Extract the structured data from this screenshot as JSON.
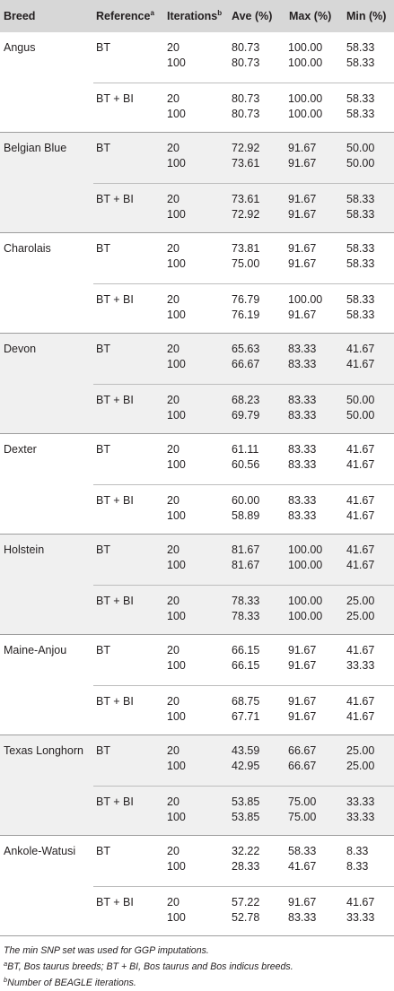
{
  "header": {
    "breed": "Breed",
    "reference": "Reference",
    "reference_sup": "a",
    "iterations": "Iterations",
    "iterations_sup": "b",
    "ave": "Ave (%)",
    "max": "Max (%)",
    "min": "Min (%)"
  },
  "breeds": [
    {
      "name": "Angus",
      "groups": [
        {
          "reference": "BT",
          "rows": [
            [
              "20",
              "80.73",
              "100.00",
              "58.33"
            ],
            [
              "100",
              "80.73",
              "100.00",
              "58.33"
            ]
          ]
        },
        {
          "reference": "BT + BI",
          "rows": [
            [
              "20",
              "80.73",
              "100.00",
              "58.33"
            ],
            [
              "100",
              "80.73",
              "100.00",
              "58.33"
            ]
          ]
        }
      ]
    },
    {
      "name": "Belgian Blue",
      "groups": [
        {
          "reference": "BT",
          "rows": [
            [
              "20",
              "72.92",
              "91.67",
              "50.00"
            ],
            [
              "100",
              "73.61",
              "91.67",
              "50.00"
            ]
          ]
        },
        {
          "reference": "BT + BI",
          "rows": [
            [
              "20",
              "73.61",
              "91.67",
              "58.33"
            ],
            [
              "100",
              "72.92",
              "91.67",
              "58.33"
            ]
          ]
        }
      ]
    },
    {
      "name": "Charolais",
      "groups": [
        {
          "reference": "BT",
          "rows": [
            [
              "20",
              "73.81",
              "91.67",
              "58.33"
            ],
            [
              "100",
              "75.00",
              "91.67",
              "58.33"
            ]
          ]
        },
        {
          "reference": "BT + BI",
          "rows": [
            [
              "20",
              "76.79",
              "100.00",
              "58.33"
            ],
            [
              "100",
              "76.19",
              "91.67",
              "58.33"
            ]
          ]
        }
      ]
    },
    {
      "name": "Devon",
      "groups": [
        {
          "reference": "BT",
          "rows": [
            [
              "20",
              "65.63",
              "83.33",
              "41.67"
            ],
            [
              "100",
              "66.67",
              "83.33",
              "41.67"
            ]
          ]
        },
        {
          "reference": "BT + BI",
          "rows": [
            [
              "20",
              "68.23",
              "83.33",
              "50.00"
            ],
            [
              "100",
              "69.79",
              "83.33",
              "50.00"
            ]
          ]
        }
      ]
    },
    {
      "name": "Dexter",
      "groups": [
        {
          "reference": "BT",
          "rows": [
            [
              "20",
              "61.11",
              "83.33",
              "41.67"
            ],
            [
              "100",
              "60.56",
              "83.33",
              "41.67"
            ]
          ]
        },
        {
          "reference": "BT + BI",
          "rows": [
            [
              "20",
              "60.00",
              "83.33",
              "41.67"
            ],
            [
              "100",
              "58.89",
              "83.33",
              "41.67"
            ]
          ]
        }
      ]
    },
    {
      "name": "Holstein",
      "groups": [
        {
          "reference": "BT",
          "rows": [
            [
              "20",
              "81.67",
              "100.00",
              "41.67"
            ],
            [
              "100",
              "81.67",
              "100.00",
              "41.67"
            ]
          ]
        },
        {
          "reference": "BT + BI",
          "rows": [
            [
              "20",
              "78.33",
              "100.00",
              "25.00"
            ],
            [
              "100",
              "78.33",
              "100.00",
              "25.00"
            ]
          ]
        }
      ]
    },
    {
      "name": "Maine-Anjou",
      "groups": [
        {
          "reference": "BT",
          "rows": [
            [
              "20",
              "66.15",
              "91.67",
              "41.67"
            ],
            [
              "100",
              "66.15",
              "91.67",
              "33.33"
            ]
          ]
        },
        {
          "reference": "BT + BI",
          "rows": [
            [
              "20",
              "68.75",
              "91.67",
              "41.67"
            ],
            [
              "100",
              "67.71",
              "91.67",
              "41.67"
            ]
          ]
        }
      ]
    },
    {
      "name": "Texas Longhorn",
      "groups": [
        {
          "reference": "BT",
          "rows": [
            [
              "20",
              "43.59",
              "66.67",
              "25.00"
            ],
            [
              "100",
              "42.95",
              "66.67",
              "25.00"
            ]
          ]
        },
        {
          "reference": "BT + BI",
          "rows": [
            [
              "20",
              "53.85",
              "75.00",
              "33.33"
            ],
            [
              "100",
              "53.85",
              "75.00",
              "33.33"
            ]
          ]
        }
      ]
    },
    {
      "name": "Ankole-Watusi",
      "groups": [
        {
          "reference": "BT",
          "rows": [
            [
              "20",
              "32.22",
              "58.33",
              "8.33"
            ],
            [
              "100",
              "28.33",
              "41.67",
              "8.33"
            ]
          ]
        },
        {
          "reference": "BT + BI",
          "rows": [
            [
              "20",
              "57.22",
              "91.67",
              "41.67"
            ],
            [
              "100",
              "52.78",
              "83.33",
              "33.33"
            ]
          ]
        }
      ]
    }
  ],
  "notes": {
    "line1": "The min SNP set was used for GGP imputations.",
    "line2_sup": "a",
    "line2": "BT, Bos taurus breeds; BT + BI, Bos taurus and Bos indicus breeds.",
    "line3_sup": "b",
    "line3": "Number of BEAGLE iterations."
  }
}
